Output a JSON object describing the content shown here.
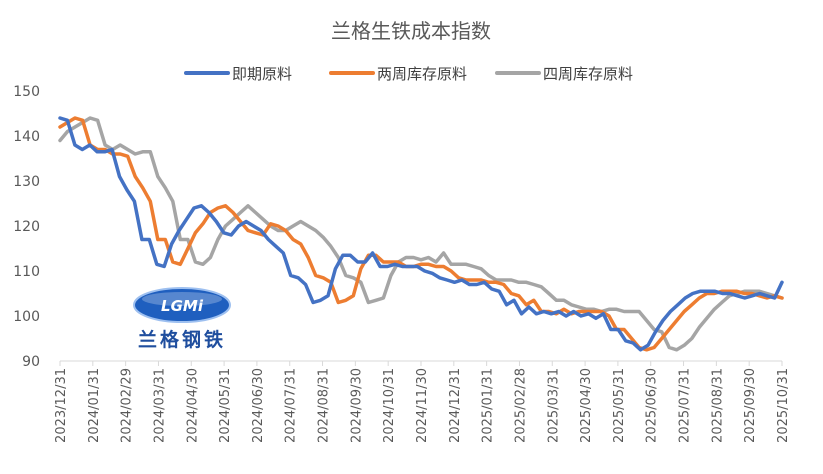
{
  "chart_data": {
    "type": "line",
    "title": "兰格生铁成本指数",
    "legend_position": "top",
    "grid": false,
    "ylim": [
      90,
      150
    ],
    "yticks": [
      90,
      100,
      110,
      120,
      130,
      140,
      150
    ],
    "x_tick_labels": [
      "2023/12/31",
      "2024/01/31",
      "2024/02/29",
      "2024/03/31",
      "2024/04/30",
      "2024/05/31",
      "2024/06/30",
      "2024/07/31",
      "2024/08/31",
      "2024/09/30",
      "2024/10/31",
      "2024/11/30",
      "2024/12/31",
      "2025/01/31",
      "2025/02/28",
      "2025/03/31",
      "2025/04/30",
      "2025/05/31",
      "2025/06/30",
      "2025/07/31",
      "2025/08/31",
      "2025/09/30",
      "2025/10/31"
    ],
    "x_start": "2023-12-31",
    "x_end": "2025-10-31",
    "series": [
      {
        "name": "即期原料",
        "color": "#4472C4",
        "values": [
          144,
          143.5,
          138,
          137,
          138,
          136.5,
          136.5,
          137,
          131,
          128,
          125.5,
          117,
          117,
          111.5,
          111,
          116,
          119,
          121.5,
          124,
          124.5,
          123,
          121,
          118.5,
          118,
          120,
          121,
          120,
          119,
          117,
          115.5,
          114,
          109,
          108.5,
          107,
          103,
          103.5,
          104.5,
          110.5,
          113.5,
          113.5,
          112,
          112,
          114,
          111,
          111,
          111.5,
          111,
          111,
          111,
          110,
          109.5,
          108.5,
          108,
          107.5,
          108,
          107,
          107,
          107.5,
          106,
          105.5,
          102.5,
          103.5,
          100.5,
          102,
          100.5,
          101,
          100.5,
          101,
          100,
          101,
          100,
          100.5,
          99.5,
          100.5,
          97,
          97,
          94.5,
          94,
          92.5,
          93.5,
          96.5,
          99,
          101,
          102.5,
          104,
          105,
          105.5,
          105.5,
          105.5,
          105,
          105,
          104.5,
          104,
          104.5,
          105,
          104.5,
          104,
          107.5
        ]
      },
      {
        "name": "两周库存原料",
        "color": "#ED7D31",
        "values": [
          142,
          143,
          144,
          143.5,
          138,
          137,
          137,
          136,
          136,
          135.5,
          131,
          128.5,
          125.5,
          117,
          117,
          112,
          111.5,
          115,
          118.5,
          120.5,
          123,
          124,
          124.5,
          123,
          121,
          119,
          118.5,
          118,
          120.5,
          120,
          119,
          117,
          116,
          113,
          109,
          108.5,
          107.5,
          103,
          103.5,
          104.5,
          110.5,
          113.5,
          113.5,
          112,
          112,
          112,
          111,
          111,
          111.5,
          111.5,
          111,
          111,
          110,
          108.5,
          108,
          108,
          108,
          107.5,
          107.5,
          107,
          105,
          104.5,
          102.5,
          103.5,
          101,
          101,
          100.5,
          101.5,
          100.5,
          101,
          101,
          101,
          101,
          100,
          97,
          97,
          95,
          93,
          92.5,
          93,
          95,
          97,
          99,
          101,
          102.5,
          104,
          105,
          105,
          105.5,
          105.5,
          105.5,
          105,
          105,
          104.5,
          104,
          104.5,
          104
        ]
      },
      {
        "name": "四周库存原料",
        "color": "#A5A5A5",
        "values": [
          139,
          141,
          142,
          143,
          144,
          143.5,
          138,
          137,
          138,
          137,
          136,
          136.5,
          136.5,
          131,
          128.5,
          125.5,
          117,
          117,
          112,
          111.5,
          113,
          117,
          120,
          121.5,
          123,
          124.5,
          123,
          121.5,
          120,
          119,
          119,
          120,
          121,
          120,
          119,
          117.5,
          115.5,
          113,
          109,
          108.5,
          107.5,
          103,
          103.5,
          104,
          109,
          112,
          113,
          113,
          112.5,
          113,
          112,
          114,
          111.5,
          111.5,
          111.5,
          111,
          110.5,
          109,
          108,
          108,
          108,
          107.5,
          107.5,
          107,
          106.5,
          105,
          103.5,
          103.5,
          102.5,
          102,
          101.5,
          101.5,
          101,
          101.5,
          101.5,
          101,
          101,
          101,
          99,
          97,
          96.5,
          93,
          92.5,
          93.5,
          95,
          97.5,
          99.5,
          101.5,
          103,
          104.5,
          105,
          105.5,
          105.5,
          105.5,
          105,
          104.5,
          104
        ]
      }
    ]
  },
  "logo": {
    "text": "LGMi",
    "cn_text": "兰格钢铁"
  }
}
